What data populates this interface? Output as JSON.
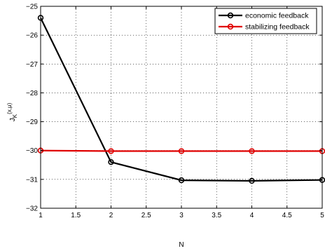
{
  "chart_data": {
    "type": "line",
    "title": "",
    "xlabel": "N",
    "ylabel_main": "J",
    "ylabel_sub": "K",
    "ylabel_sup": "(x,μ)",
    "xlim": [
      1,
      5
    ],
    "ylim": [
      -32,
      -25
    ],
    "xticks": [
      1,
      1.5,
      2,
      2.5,
      3,
      3.5,
      4,
      4.5,
      5
    ],
    "yticks": [
      -32,
      -31,
      -30,
      -29,
      -28,
      -27,
      -26,
      -25
    ],
    "grid": true,
    "legend_position": "top-right",
    "series": [
      {
        "name": "economic feedback",
        "color": "#000000",
        "marker": "circle",
        "x": [
          1,
          2,
          3,
          4,
          5
        ],
        "y": [
          -25.4,
          -30.4,
          -31.03,
          -31.05,
          -31.02
        ]
      },
      {
        "name": "stabilizing feedback",
        "color": "#e00000",
        "marker": "circle",
        "x": [
          1,
          2,
          3,
          4,
          5
        ],
        "y": [
          -30.0,
          -30.02,
          -30.02,
          -30.02,
          -30.02
        ]
      }
    ]
  }
}
